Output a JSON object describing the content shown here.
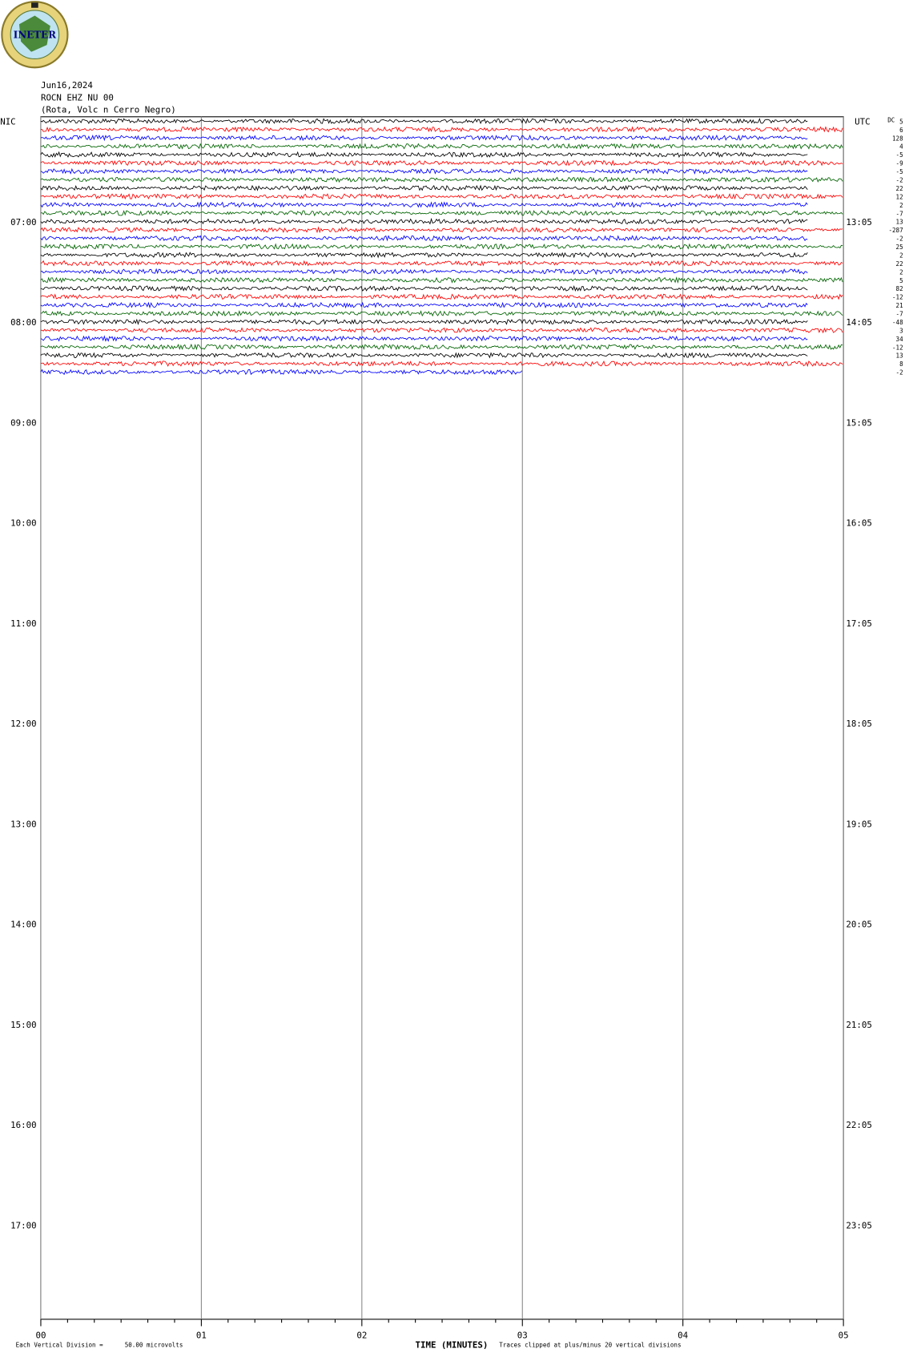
{
  "chart_data": {
    "type": "helicorder",
    "logo": "INETER",
    "title_lines": [
      "Jun16,2024",
      "ROCN EHZ NU 00",
      "(Rota, Volc n Cerro Negro)"
    ],
    "left_label": "NIC",
    "right_label": "UTC",
    "dc_label": "DC",
    "xlabel": "TIME (MINUTES)",
    "xlim": [
      0,
      5
    ],
    "xticks": [
      {
        "value": 0,
        "label": "00"
      },
      {
        "value": 1,
        "label": "01"
      },
      {
        "value": 2,
        "label": "02"
      },
      {
        "value": 3,
        "label": "03"
      },
      {
        "value": 4,
        "label": "04"
      },
      {
        "value": 5,
        "label": "05"
      }
    ],
    "left_hours": [
      "07:00",
      "08:00",
      "09:00",
      "10:00",
      "11:00",
      "12:00",
      "13:00",
      "14:00",
      "15:00",
      "16:00",
      "17:00"
    ],
    "right_hours": [
      "13:05",
      "14:05",
      "15:05",
      "16:05",
      "17:05",
      "18:05",
      "19:05",
      "20:05",
      "21:05",
      "22:05",
      "23:05"
    ],
    "traces": [
      {
        "color": "#000000",
        "dc": 5,
        "end": 4.78
      },
      {
        "color": "#ff0000",
        "dc": 6,
        "end": 5
      },
      {
        "color": "#0000ff",
        "dc": 128,
        "end": 4.78
      },
      {
        "color": "#006400",
        "dc": 4,
        "end": 5
      },
      {
        "color": "#000000",
        "dc": -5,
        "end": 4.78
      },
      {
        "color": "#ff0000",
        "dc": -9,
        "end": 5
      },
      {
        "color": "#0000ff",
        "dc": -5,
        "end": 4.78
      },
      {
        "color": "#006400",
        "dc": -2,
        "end": 5
      },
      {
        "color": "#000000",
        "dc": 22,
        "end": 4.78
      },
      {
        "color": "#ff0000",
        "dc": 12,
        "end": 5
      },
      {
        "color": "#0000ff",
        "dc": 2,
        "end": 4.78
      },
      {
        "color": "#006400",
        "dc": -7,
        "end": 5
      },
      {
        "color": "#000000",
        "dc": 13,
        "end": 4.78
      },
      {
        "color": "#ff0000",
        "dc": -287,
        "end": 5
      },
      {
        "color": "#0000ff",
        "dc": -2,
        "end": 4.78
      },
      {
        "color": "#006400",
        "dc": 25,
        "end": 5
      },
      {
        "color": "#000000",
        "dc": 2,
        "end": 4.78
      },
      {
        "color": "#ff0000",
        "dc": 22,
        "end": 5
      },
      {
        "color": "#0000ff",
        "dc": 2,
        "end": 4.78
      },
      {
        "color": "#006400",
        "dc": 5,
        "end": 5
      },
      {
        "color": "#000000",
        "dc": 82,
        "end": 4.78
      },
      {
        "color": "#ff0000",
        "dc": -12,
        "end": 5
      },
      {
        "color": "#0000ff",
        "dc": 21,
        "end": 4.78
      },
      {
        "color": "#006400",
        "dc": -7,
        "end": 5
      },
      {
        "color": "#000000",
        "dc": -48,
        "end": 4.78
      },
      {
        "color": "#ff0000",
        "dc": 3,
        "end": 5
      },
      {
        "color": "#0000ff",
        "dc": 34,
        "end": 4.78
      },
      {
        "color": "#006400",
        "dc": -12,
        "end": 5
      },
      {
        "color": "#000000",
        "dc": 13,
        "end": 4.78
      },
      {
        "color": "#ff0000",
        "dc": 8,
        "end": 5
      },
      {
        "color": "#0000ff",
        "dc": -2,
        "end": 3
      }
    ],
    "footer_left": "Each Vertical Division =",
    "footer_units": "50.00 microvolts",
    "footer_right": "Traces clipped at plus/minus 20 vertical divisions"
  }
}
